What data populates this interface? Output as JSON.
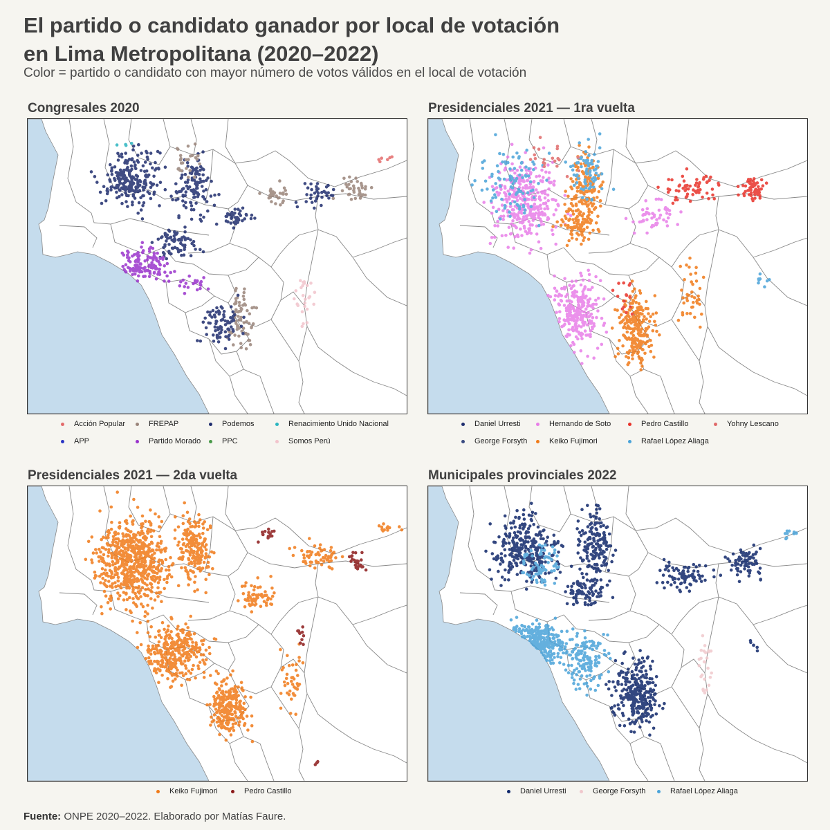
{
  "title_line1": "El partido o candidato ganador por local de votación",
  "title_line2": "en Lima Metropolitana (2020–2022)",
  "subtitle": "Color = partido o candidato con mayor número de votos válidos en el local de votación",
  "colors": {
    "sea": "#c5dced",
    "land": "#ffffff",
    "border": "#888888"
  },
  "panels": [
    {
      "id": "congresales-2020",
      "title": "Congresales 2020",
      "legend": [
        {
          "label": "Acción Popular",
          "color": "#e36b6b"
        },
        {
          "label": "FREPAP",
          "color": "#9a847a"
        },
        {
          "label": "Podemos",
          "color": "#1f2d6e"
        },
        {
          "label": "Renacimiento Unido Nacional",
          "color": "#2bb5c0"
        },
        {
          "label": "APP",
          "color": "#2a35c4"
        },
        {
          "label": "Partido Morado",
          "color": "#9933cc"
        },
        {
          "label": "PPC",
          "color": "#4a9a4a"
        },
        {
          "label": "Somos Perú",
          "color": "#f2c4cc"
        }
      ]
    },
    {
      "id": "presidenciales-2021-1ra",
      "title": "Presidenciales 2021 — 1ra vuelta",
      "legend": [
        {
          "label": "Daniel Urresti",
          "color": "#1f2d6e"
        },
        {
          "label": "Hernando de Soto",
          "color": "#e87ee8"
        },
        {
          "label": "Pedro Castillo",
          "color": "#e8322a"
        },
        {
          "label": "Yohny Lescano",
          "color": "#e06a6a"
        },
        {
          "label": "George Forsyth",
          "color": "#3a4a80"
        },
        {
          "label": "Keiko Fujimori",
          "color": "#f07a18"
        },
        {
          "label": "Rafael López Aliaga",
          "color": "#4aa3d9"
        }
      ]
    },
    {
      "id": "presidenciales-2021-2da",
      "title": "Presidenciales 2021 — 2da vuelta",
      "legend": [
        {
          "label": "Keiko Fujimori",
          "color": "#f07a18"
        },
        {
          "label": "Pedro Castillo",
          "color": "#8b1a1a"
        }
      ]
    },
    {
      "id": "municipales-2022",
      "title": "Municipales provinciales 2022",
      "legend": [
        {
          "label": "Daniel Urresti",
          "color": "#10286b"
        },
        {
          "label": "George Forsyth",
          "color": "#f0c8cc"
        },
        {
          "label": "Rafael López Aliaga",
          "color": "#4aa3d9"
        }
      ]
    }
  ],
  "footer_bold": "Fuente:",
  "footer_text": " ONPE 2020–2022. Elaborado por Matías Faure."
}
